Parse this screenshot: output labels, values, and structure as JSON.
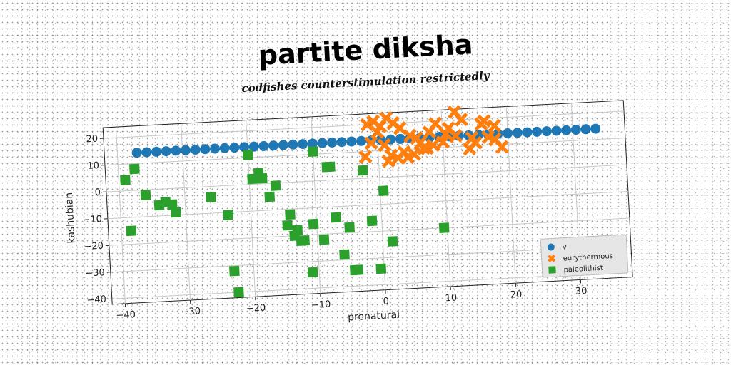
{
  "title": "partite diksha",
  "subtitle": "codfishes counterstimulation restrictedly",
  "colors": {
    "v": "#1f77b4",
    "eurythermous": "#ff7f0e",
    "paleolithist": "#2ca02c"
  },
  "chart_data": {
    "type": "scatter",
    "xlabel": "prenatural",
    "ylabel": "kashubian",
    "xlim": [
      -42,
      38
    ],
    "ylim": [
      -42,
      24
    ],
    "xticks": [
      -40,
      -30,
      -20,
      -10,
      0,
      10,
      20,
      30
    ],
    "yticks": [
      -40,
      -30,
      -20,
      -10,
      0,
      10,
      20
    ],
    "grid": true,
    "legend_position": "lower-right",
    "series": [
      {
        "name": "v",
        "marker": "circle",
        "x": [
          -37,
          -35.5,
          -34,
          -32.5,
          -31,
          -29.5,
          -28,
          -26.5,
          -25,
          -23.5,
          -22,
          -20.5,
          -19,
          -17.5,
          -16,
          -14.5,
          -13,
          -11.5,
          -10,
          -8.5,
          -7,
          -5.5,
          -4,
          -2.5,
          -1,
          0.5,
          2,
          3.5,
          5,
          6.5,
          8,
          9.5,
          11,
          12.5,
          14,
          15.5,
          17,
          18.5,
          20,
          21.5,
          23,
          24.5,
          26,
          27.5,
          29,
          30.5,
          32,
          33.5
        ],
        "y": [
          14,
          14,
          14,
          14,
          14,
          14,
          14,
          14,
          14,
          14,
          14,
          14,
          14,
          14,
          14,
          14,
          14,
          14,
          14,
          14,
          14,
          14,
          14,
          14,
          14,
          14,
          14,
          14,
          14,
          14,
          14,
          14,
          14,
          14,
          14,
          14,
          14,
          14,
          14,
          14,
          14,
          14,
          14,
          14,
          14,
          14,
          14,
          14
        ]
      },
      {
        "name": "eurythermous",
        "marker": "x",
        "x": [
          -1.5,
          -0.5,
          0.5,
          1.5,
          2.5,
          3.5,
          0,
          1,
          -1,
          2,
          4,
          5,
          6,
          7,
          8,
          9,
          10,
          11,
          12,
          13,
          14,
          15,
          16,
          17,
          18,
          19,
          3,
          5.5,
          6.5,
          8.5,
          12,
          14.5,
          -2,
          1.5,
          4.5,
          7.5,
          10.5,
          16.5,
          18
        ],
        "y": [
          20,
          21,
          19,
          22,
          20,
          18,
          17,
          12,
          13,
          8,
          9,
          15,
          14,
          10,
          16,
          19,
          12,
          17,
          23,
          20,
          9,
          11,
          18,
          13,
          17,
          9,
          7,
          8,
          12,
          11,
          14,
          13,
          8,
          6,
          7,
          10,
          15,
          19,
          12
        ]
      },
      {
        "name": "paleolithist",
        "marker": "square",
        "x": [
          -39,
          -37.5,
          -36,
          -38.5,
          -34,
          -33,
          -32,
          -31.5,
          -26,
          -23.5,
          -23,
          -22.5,
          -20,
          -19.5,
          -18.5,
          -18,
          -17,
          -16,
          -14.5,
          -14,
          -13.5,
          -13,
          -12.5,
          -12,
          -11,
          -10.5,
          -10,
          -9,
          -8,
          -7.5,
          -7,
          -6,
          -5,
          -4.5,
          -4,
          -2.5,
          -1.5,
          -0.5,
          0.5,
          1.5,
          9.5
        ],
        "y": [
          4,
          8,
          -2,
          -15,
          -6,
          -5,
          -6,
          -9,
          -4,
          -11,
          -32,
          -40,
          11,
          2,
          4,
          2,
          -5,
          -1,
          -16,
          -12,
          -20,
          -18,
          -22,
          -22,
          -34,
          -16,
          11,
          -22,
          5,
          5,
          -14,
          -28,
          -18,
          -34,
          -34,
          3,
          -16,
          -34,
          -5,
          -24,
          -20
        ]
      }
    ]
  }
}
